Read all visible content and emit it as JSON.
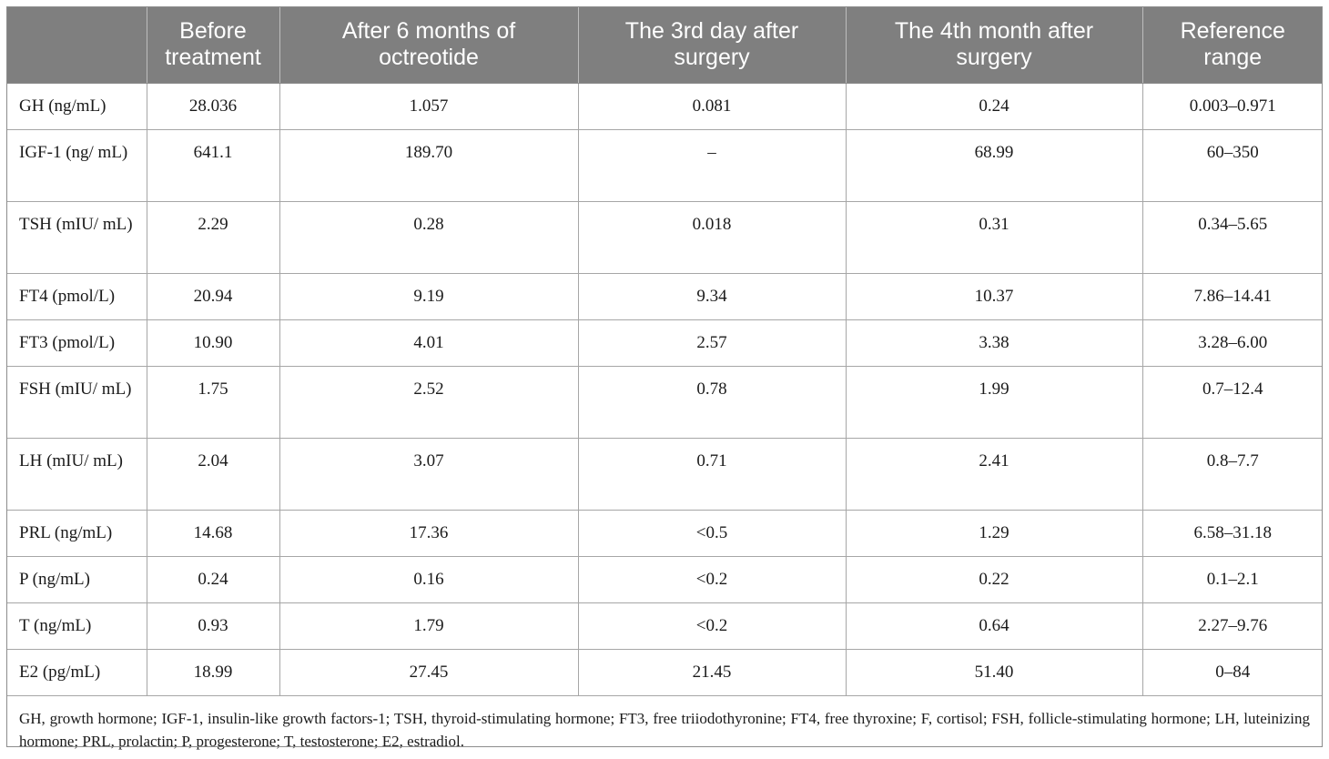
{
  "table": {
    "headers": [
      "",
      "Before treatment",
      "After 6 months of octreotide",
      "The 3rd day after surgery",
      "The 4th month after surgery",
      "Reference range"
    ],
    "rows": [
      [
        "GH (ng/mL)",
        "28.036",
        "1.057",
        "0.081",
        "0.24",
        "0.003–0.971"
      ],
      [
        "IGF-1 (ng/ mL)",
        "641.1",
        "189.70",
        "–",
        "68.99",
        "60–350"
      ],
      [
        "TSH (mIU/ mL)",
        "2.29",
        "0.28",
        "0.018",
        "0.31",
        "0.34–5.65"
      ],
      [
        "FT4 (pmol/L)",
        "20.94",
        "9.19",
        "9.34",
        "10.37",
        "7.86–14.41"
      ],
      [
        "FT3 (pmol/L)",
        "10.90",
        "4.01",
        "2.57",
        "3.38",
        "3.28–6.00"
      ],
      [
        "FSH (mIU/ mL)",
        "1.75",
        "2.52",
        "0.78",
        "1.99",
        "0.7–12.4"
      ],
      [
        "LH (mIU/ mL)",
        "2.04",
        "3.07",
        "0.71",
        "2.41",
        "0.8–7.7"
      ],
      [
        "PRL (ng/mL)",
        "14.68",
        "17.36",
        "<0.5",
        "1.29",
        "6.58–31.18"
      ],
      [
        "P (ng/mL)",
        "0.24",
        "0.16",
        "<0.2",
        "0.22",
        "0.1–2.1"
      ],
      [
        "T (ng/mL)",
        "0.93",
        "1.79",
        "<0.2",
        "0.64",
        "2.27–9.76"
      ],
      [
        "E2 (pg/mL)",
        "18.99",
        "27.45",
        "21.45",
        "51.40",
        "0–84"
      ]
    ],
    "footnote": "GH, growth hormone; IGF-1, insulin-like growth factors-1; TSH, thyroid-stimulating hormone; FT3, free triiodothyronine; FT4, free thyroxine; F, cortisol; FSH, follicle-stimulating hormone; LH, luteinizing hormone; PRL, prolactin; P, progesterone; T, testosterone; E2, estradiol."
  },
  "colors": {
    "header_bg": "#7f7f7f",
    "header_text": "#ffffff",
    "grid_line": "#a6a6a6"
  }
}
